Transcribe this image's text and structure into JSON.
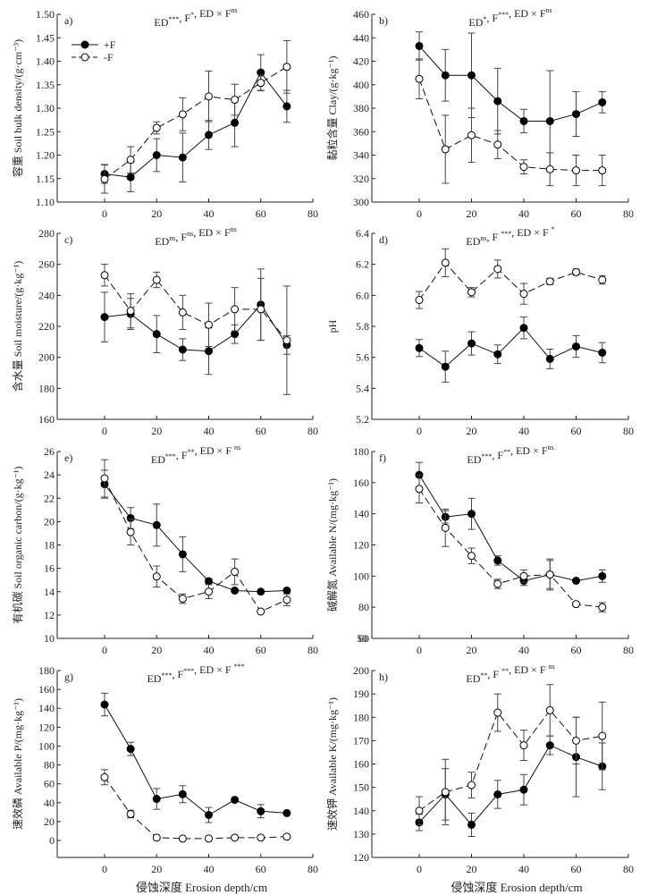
{
  "legend": {
    "items": [
      {
        "label": "+F",
        "marker": "filled-circle",
        "line": "solid"
      },
      {
        "label": "-F",
        "marker": "open-circle",
        "line": "dashed"
      }
    ]
  },
  "xlabel_text": "侵蚀深度 Erosion depth/cm",
  "chart_data": [
    {
      "type": "line",
      "panel": "a)",
      "title": "ED***, F*, ED × Fns",
      "stat": {
        "parts": [
          [
            "ED",
            "***"
          ],
          [
            ", F",
            "*"
          ],
          [
            ", ED × F",
            "ns"
          ]
        ]
      },
      "ylabel": "容重 Soil bulk density/(g·cm⁻³)",
      "xlabel": "",
      "ylim": [
        1.1,
        1.5
      ],
      "yticks": [
        1.1,
        1.15,
        1.2,
        1.25,
        1.3,
        1.35,
        1.4,
        1.45,
        1.5
      ],
      "ydec": 2,
      "xlim": [
        -15,
        80
      ],
      "xticks": [
        0,
        20,
        40,
        60,
        80
      ],
      "x": [
        0,
        10,
        20,
        30,
        40,
        50,
        60,
        70
      ],
      "legend": "top-left",
      "series": [
        {
          "name": "+F",
          "values": [
            1.16,
            1.153,
            1.2,
            1.195,
            1.243,
            1.269,
            1.376,
            1.304
          ],
          "err": [
            0.02,
            0.031,
            0.035,
            0.052,
            0.031,
            0.051,
            0.038,
            0.034
          ]
        },
        {
          "name": "-F",
          "values": [
            1.149,
            1.19,
            1.258,
            1.287,
            1.325,
            1.318,
            1.354,
            1.388
          ],
          "err": [
            0.03,
            0.028,
            0.013,
            0.035,
            0.054,
            0.033,
            0.017,
            0.056
          ]
        }
      ]
    },
    {
      "type": "line",
      "panel": "b)",
      "title": "ED*, F***, ED × Fns",
      "stat": {
        "parts": [
          [
            "ED",
            "*"
          ],
          [
            ", F",
            "***"
          ],
          [
            ", ED × F",
            "ns"
          ]
        ]
      },
      "ylabel": "黏粒含量 Clay/(g·kg⁻¹)",
      "xlabel": "",
      "ylim": [
        300,
        460
      ],
      "yticks": [
        300,
        320,
        340,
        360,
        380,
        400,
        420,
        440,
        460
      ],
      "ydec": 0,
      "xlim": [
        -15,
        80
      ],
      "xticks": [
        0,
        20,
        40,
        60,
        80
      ],
      "x": [
        0,
        10,
        20,
        30,
        40,
        50,
        60,
        70
      ],
      "series": [
        {
          "name": "+F",
          "values": [
            433,
            408,
            408,
            386,
            369,
            369,
            375,
            385
          ],
          "err": [
            12,
            22,
            36,
            28,
            10,
            43,
            19,
            9
          ]
        },
        {
          "name": "-F",
          "values": [
            405,
            345,
            357,
            349,
            330,
            328,
            327,
            327
          ],
          "err": [
            17,
            29,
            23,
            12,
            6,
            14,
            13,
            13
          ]
        }
      ]
    },
    {
      "type": "line",
      "panel": "c)",
      "title": "EDns, Fns, ED × Fns",
      "stat": {
        "parts": [
          [
            "ED",
            "ns"
          ],
          [
            ", F",
            "ns"
          ],
          [
            ", ED × F",
            "ns"
          ]
        ]
      },
      "ylabel": "含水量 Soil moisture/(g·kg⁻¹)",
      "xlabel": "",
      "ylim": [
        160,
        280
      ],
      "yticks": [
        160,
        180,
        200,
        220,
        240,
        260,
        280
      ],
      "ydec": 0,
      "xlim": [
        -15,
        80
      ],
      "xticks": [
        0,
        20,
        40,
        60,
        80
      ],
      "x": [
        0,
        10,
        20,
        30,
        40,
        50,
        60,
        70
      ],
      "series": [
        {
          "name": "+F",
          "values": [
            226,
            228,
            215,
            205,
            204,
            215,
            234,
            208
          ],
          "err": [
            16,
            10,
            12,
            7,
            15,
            6,
            23,
            6
          ]
        },
        {
          "name": "-F",
          "values": [
            253,
            230,
            250,
            229,
            221,
            231,
            231,
            211
          ],
          "err": [
            7,
            11,
            5,
            11,
            14,
            14,
            20,
            35
          ]
        }
      ]
    },
    {
      "type": "line",
      "panel": "d)",
      "title": "EDns, F***, ED × F*",
      "stat": {
        "parts": [
          [
            "ED",
            "ns"
          ],
          [
            ", F ",
            "***"
          ],
          [
            ", ED × F ",
            "*"
          ]
        ]
      },
      "ylabel": "pH",
      "xlabel": "",
      "ylim": [
        5.2,
        6.4
      ],
      "yticks": [
        5.2,
        5.4,
        5.6,
        5.8,
        6.0,
        6.2,
        6.4
      ],
      "ydec": 1,
      "xlim": [
        -15,
        80
      ],
      "xticks": [
        0,
        20,
        40,
        60,
        80
      ],
      "x": [
        0,
        10,
        20,
        30,
        40,
        50,
        60,
        70
      ],
      "series": [
        {
          "name": "+F",
          "values": [
            5.66,
            5.54,
            5.69,
            5.62,
            5.79,
            5.59,
            5.67,
            5.63
          ],
          "err": [
            0.055,
            0.1,
            0.075,
            0.06,
            0.07,
            0.063,
            0.07,
            0.065
          ]
        },
        {
          "name": "-F",
          "values": [
            5.97,
            6.21,
            6.02,
            6.17,
            6.01,
            6.09,
            6.15,
            6.1
          ],
          "err": [
            0.055,
            0.09,
            0.03,
            0.058,
            0.067,
            0.02,
            0.02,
            0.027
          ]
        }
      ]
    },
    {
      "type": "line",
      "panel": "e)",
      "title": "ED***, F**, ED × Fns",
      "stat": {
        "parts": [
          [
            "ED",
            "***"
          ],
          [
            ", F",
            "**"
          ],
          [
            ", ED × F ",
            "ns"
          ]
        ]
      },
      "ylabel": "有机碳 Soil organic carbon/(g·kg⁻¹)",
      "xlabel": "",
      "ylim": [
        10,
        26
      ],
      "yticks": [
        10,
        12,
        14,
        16,
        18,
        20,
        22,
        24,
        26
      ],
      "ydec": 0,
      "xlim": [
        -15,
        80
      ],
      "xticks": [
        0,
        20,
        40,
        60,
        80
      ],
      "x": [
        0,
        10,
        20,
        30,
        40,
        50,
        60,
        70
      ],
      "series": [
        {
          "name": "+F",
          "values": [
            23.2,
            20.3,
            19.7,
            17.2,
            14.9,
            14.1,
            14.0,
            14.1
          ],
          "err": [
            1.2,
            0.9,
            1.8,
            1.5,
            0.2,
            0.1,
            0.1,
            0.1
          ]
        },
        {
          "name": "-F",
          "values": [
            23.7,
            19.1,
            15.3,
            13.4,
            14.0,
            15.7,
            12.3,
            13.3
          ],
          "err": [
            1.6,
            1.1,
            0.9,
            0.4,
            0.6,
            1.1,
            0.1,
            0.5
          ]
        }
      ]
    },
    {
      "type": "line",
      "panel": "f)",
      "title": "ED***, F**, ED × Fns",
      "stat": {
        "parts": [
          [
            "ED",
            "***"
          ],
          [
            ", F",
            "**"
          ],
          [
            ", ED × F",
            "ns"
          ]
        ]
      },
      "ylabel": "碱解氮 Available N/(mg·kg⁻¹)",
      "xlabel": "",
      "ylim": [
        60,
        180
      ],
      "yticks": [
        60,
        80,
        100,
        120,
        140,
        160,
        180
      ],
      "ydec": 0,
      "bottom_overlap_label": "50",
      "xlim": [
        -15,
        80
      ],
      "xticks": [
        0,
        20,
        40,
        60,
        80
      ],
      "x": [
        0,
        10,
        20,
        30,
        40,
        50,
        60,
        70
      ],
      "series": [
        {
          "name": "+F",
          "values": [
            165,
            138,
            140,
            110,
            97,
            101,
            97,
            100
          ],
          "err": [
            8,
            4,
            10,
            3,
            3,
            9,
            1,
            4
          ]
        },
        {
          "name": "-F",
          "values": [
            156,
            131,
            113,
            95,
            100,
            101,
            82,
            80
          ],
          "err": [
            9,
            12,
            5,
            3,
            4,
            10,
            1,
            3
          ]
        }
      ]
    },
    {
      "type": "line",
      "panel": "g)",
      "title": "ED***, F***, ED × F***",
      "stat": {
        "parts": [
          [
            "ED",
            "***"
          ],
          [
            ", F",
            "***"
          ],
          [
            ", ED × F ",
            "***"
          ]
        ]
      },
      "ylabel": "速效磷 Available P/(mg·kg⁻¹)",
      "xlabel": "侵蚀深度 Erosion depth/cm",
      "ylim": [
        -18,
        180
      ],
      "yticks": [
        0,
        20,
        40,
        60,
        80,
        100,
        120,
        140,
        160,
        180
      ],
      "ydec": 0,
      "xlim": [
        -15,
        80
      ],
      "xticks": [
        0,
        20,
        40,
        60,
        80
      ],
      "x": [
        0,
        10,
        20,
        30,
        40,
        50,
        60,
        70
      ],
      "series": [
        {
          "name": "+F",
          "values": [
            144,
            97,
            44,
            49,
            27,
            43,
            31,
            29
          ],
          "err": [
            12,
            7,
            11,
            9,
            8,
            1,
            7,
            1
          ]
        },
        {
          "name": "-F",
          "values": [
            67,
            28,
            3,
            2,
            2,
            3,
            3,
            4
          ],
          "err": [
            8,
            4,
            0.5,
            0.5,
            0.5,
            0.5,
            0.5,
            0.5
          ]
        }
      ]
    },
    {
      "type": "line",
      "panel": "h)",
      "title": "ED**, F**, ED × Fns",
      "stat": {
        "parts": [
          [
            "ED",
            "**"
          ],
          [
            ", F ",
            "**"
          ],
          [
            ", ED × F ",
            "ns"
          ]
        ]
      },
      "ylabel": "速效钾 Available K/(mg·kg⁻¹)",
      "xlabel": "侵蚀深度 Erosion depth/cm",
      "ylim": [
        120,
        200
      ],
      "yticks": [
        120,
        130,
        140,
        150,
        160,
        170,
        180,
        190,
        200
      ],
      "ydec": 0,
      "xlim": [
        -15,
        80
      ],
      "xticks": [
        0,
        20,
        40,
        60,
        80
      ],
      "x": [
        0,
        10,
        20,
        30,
        40,
        50,
        60,
        70
      ],
      "series": [
        {
          "name": "+F",
          "values": [
            135,
            147,
            134,
            147,
            149,
            168,
            163,
            159
          ],
          "err": [
            3.5,
            11,
            5,
            6,
            6.5,
            4,
            17,
            10
          ]
        },
        {
          "name": "-F",
          "values": [
            140,
            148,
            151,
            182,
            168,
            183,
            170,
            172
          ],
          "err": [
            6,
            14,
            5.5,
            8,
            6.5,
            11,
            10,
            14.5
          ]
        }
      ]
    }
  ]
}
